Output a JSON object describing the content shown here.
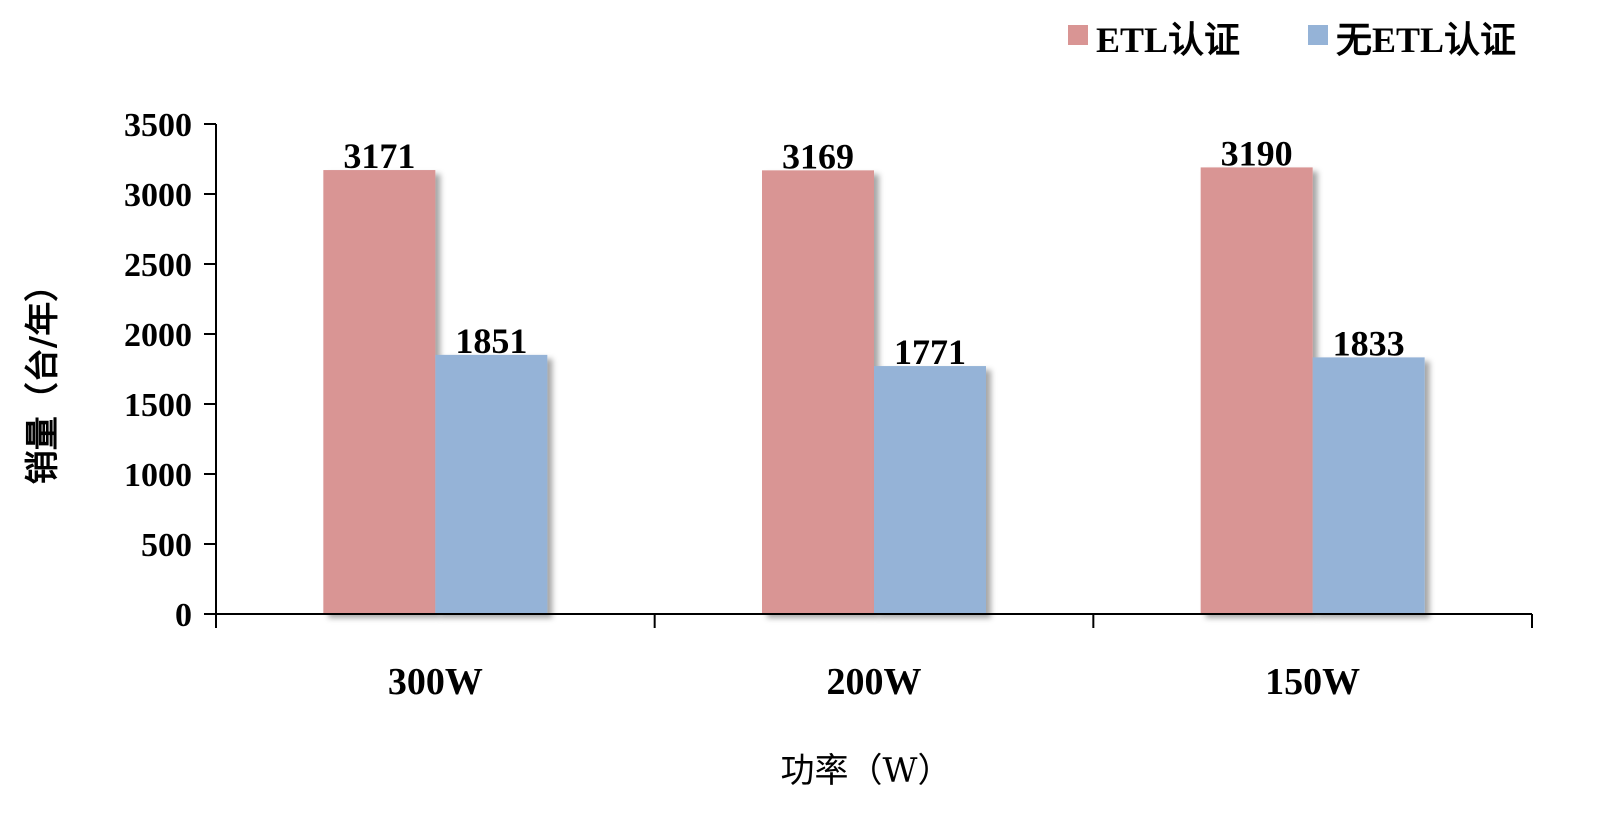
{
  "chart_data": {
    "type": "bar",
    "categories": [
      "300W",
      "200W",
      "150W"
    ],
    "series": [
      {
        "name": "ETL认证",
        "values": [
          3171,
          3169,
          3190
        ],
        "color": "#d99594"
      },
      {
        "name": "无ETL认证",
        "values": [
          1851,
          1771,
          1833
        ],
        "color": "#95b3d7"
      }
    ],
    "xlabel": "功率（W）",
    "ylabel": "销量（台/年）",
    "ylim": [
      0,
      3500
    ],
    "yticks": [
      0,
      500,
      1000,
      1500,
      2000,
      2500,
      3000,
      3500
    ],
    "grid": false,
    "legend_position": "top-right"
  }
}
